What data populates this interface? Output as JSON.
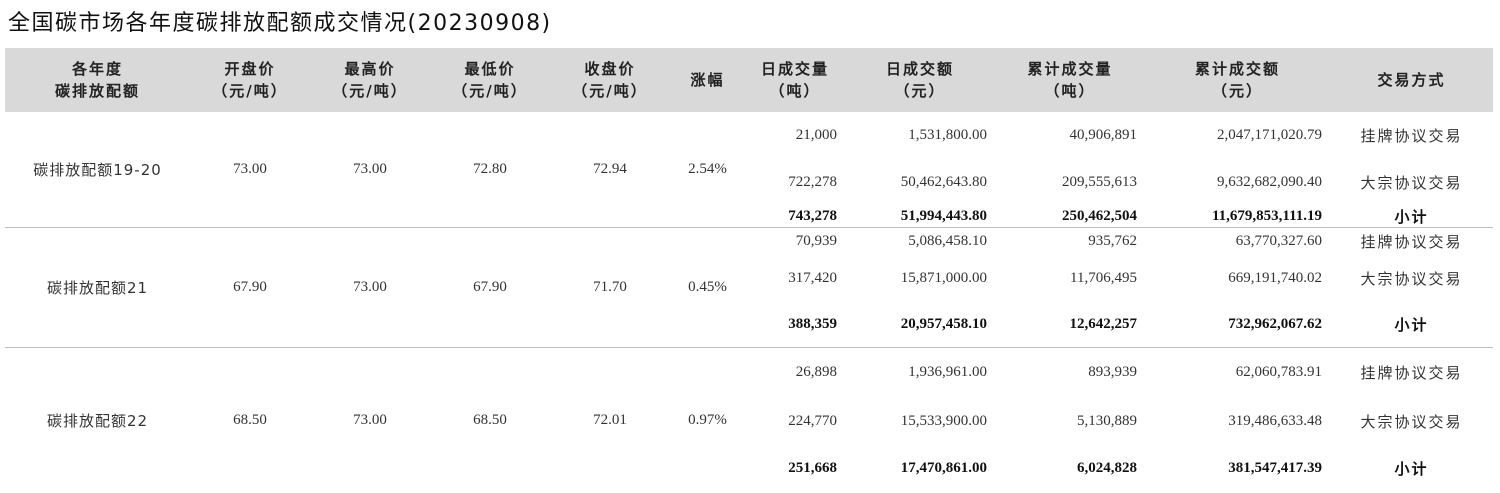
{
  "title": "全国碳市场各年度碳排放配额成交情况(20230908)",
  "headers": [
    "各年度\n碳排放配额",
    "开盘价\n（元/吨）",
    "最高价\n（元/吨）",
    "最低价\n（元/吨）",
    "收盘价\n（元/吨）",
    "涨幅",
    "日成交量\n（吨）",
    "日成交额\n（元）",
    "累计成交量\n（吨）",
    "累计成交额\n（元）",
    "交易方式"
  ],
  "groups": [
    {
      "name": "碳排放配额19-20",
      "open": "73.00",
      "high": "73.00",
      "low": "72.80",
      "close": "72.94",
      "change": "2.54%",
      "rows": [
        {
          "vol": "21,000",
          "amt": "1,531,800.00",
          "cum_vol": "40,906,891",
          "cum_amt": "2,047,171,020.79",
          "method": "挂牌协议交易"
        },
        {
          "vol": "722,278",
          "amt": "50,462,643.80",
          "cum_vol": "209,555,613",
          "cum_amt": "9,632,682,090.40",
          "method": "大宗协议交易"
        },
        {
          "vol": "743,278",
          "amt": "51,994,443.80",
          "cum_vol": "250,462,504",
          "cum_amt": "11,679,853,111.19",
          "method": "小计"
        }
      ]
    },
    {
      "name": "碳排放配额21",
      "open": "67.90",
      "high": "73.00",
      "low": "67.90",
      "close": "71.70",
      "change": "0.45%",
      "rows": [
        {
          "vol": "70,939",
          "amt": "5,086,458.10",
          "cum_vol": "935,762",
          "cum_amt": "63,770,327.60",
          "method": "挂牌协议交易"
        },
        {
          "vol": "317,420",
          "amt": "15,871,000.00",
          "cum_vol": "11,706,495",
          "cum_amt": "669,191,740.02",
          "method": "大宗协议交易"
        },
        {
          "vol": "388,359",
          "amt": "20,957,458.10",
          "cum_vol": "12,642,257",
          "cum_amt": "732,962,067.62",
          "method": "小计"
        }
      ]
    },
    {
      "name": "碳排放配额22",
      "open": "68.50",
      "high": "73.00",
      "low": "68.50",
      "close": "72.01",
      "change": "0.97%",
      "rows": [
        {
          "vol": "26,898",
          "amt": "1,936,961.00",
          "cum_vol": "893,939",
          "cum_amt": "62,060,783.91",
          "method": "挂牌协议交易"
        },
        {
          "vol": "224,770",
          "amt": "15,533,900.00",
          "cum_vol": "5,130,889",
          "cum_amt": "319,486,633.48",
          "method": "大宗协议交易"
        },
        {
          "vol": "251,668",
          "amt": "17,470,861.00",
          "cum_vol": "6,024,828",
          "cum_amt": "381,547,417.39",
          "method": "小计"
        }
      ]
    }
  ]
}
